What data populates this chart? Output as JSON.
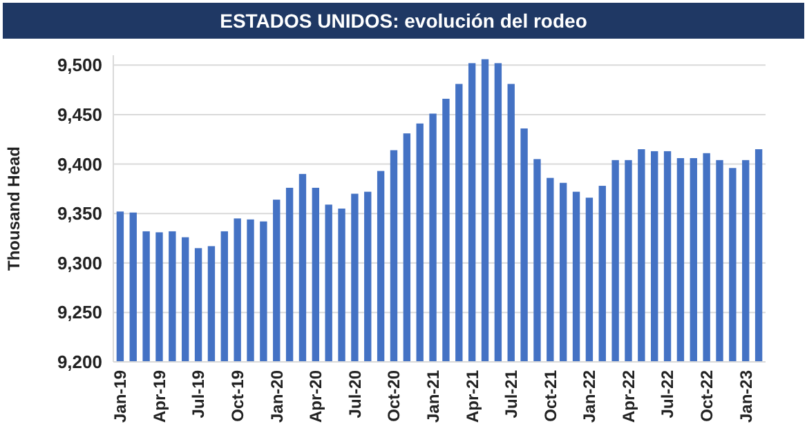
{
  "chart_data": {
    "type": "bar",
    "title": "ESTADOS UNIDOS: evolución del rodeo",
    "ylabel": "Thousand Head",
    "categories": [
      "Jan-19",
      null,
      null,
      "Apr-19",
      null,
      null,
      "Jul-19",
      null,
      null,
      "Oct-19",
      null,
      null,
      "Jan-20",
      null,
      null,
      "Apr-20",
      null,
      null,
      "Jul-20",
      null,
      null,
      "Oct-20",
      null,
      null,
      "Jan-21",
      null,
      null,
      "Apr-21",
      null,
      null,
      "Jul-21",
      null,
      null,
      "Oct-21",
      null,
      null,
      "Jan-22",
      null,
      null,
      "Apr-22",
      null,
      null,
      "Jul-22",
      null,
      null,
      "Oct-22",
      null,
      null,
      "Jan-23",
      null
    ],
    "values": [
      9352,
      9351,
      9332,
      9331,
      9332,
      9326,
      9315,
      9317,
      9332,
      9345,
      9344,
      9342,
      9364,
      9376,
      9390,
      9376,
      9359,
      9355,
      9370,
      9372,
      9393,
      9414,
      9431,
      9441,
      9451,
      9466,
      9481,
      9502,
      9506,
      9502,
      9481,
      9436,
      9405,
      9386,
      9381,
      9372,
      9366,
      9378,
      9404,
      9404,
      9415,
      9413,
      9413,
      9406,
      9406,
      9411,
      9404,
      9396,
      9404,
      9415
    ],
    "color": "#4472c4",
    "ylim": [
      9200,
      9510
    ],
    "yticks": [
      {
        "value": 9200,
        "label": "9,200"
      },
      {
        "value": 9250,
        "label": "9,250"
      },
      {
        "value": 9300,
        "label": "9,300"
      },
      {
        "value": 9350,
        "label": "9,350"
      },
      {
        "value": 9400,
        "label": "9,400"
      },
      {
        "value": 9450,
        "label": "9,450"
      },
      {
        "value": 9500,
        "label": "9,500"
      }
    ],
    "grid": "y"
  }
}
